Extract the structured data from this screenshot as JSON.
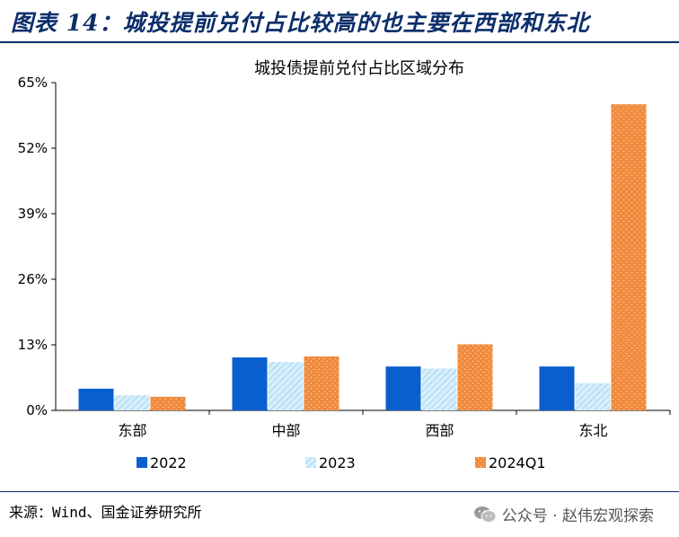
{
  "figure_title": "图表 14：城投提前兑付占比较高的也主要在西部和东北",
  "source": "来源：Wind、国金证券研究所",
  "watermark": {
    "icon": "wechat-icon",
    "text": "公众号 · 赵伟宏观探索"
  },
  "chart_data": {
    "type": "bar",
    "title": "城投债提前兑付占比区域分布",
    "categories": [
      "东部",
      "中部",
      "西部",
      "东北"
    ],
    "series": [
      {
        "name": "2022",
        "values": [
          4.3,
          10.5,
          8.7,
          8.7
        ],
        "color": "#0a5fcf",
        "pattern": "solid"
      },
      {
        "name": "2023",
        "values": [
          3.0,
          9.6,
          8.3,
          5.4
        ],
        "color": "#bfe3f7",
        "pattern": "hatch"
      },
      {
        "name": "2024Q1",
        "values": [
          2.7,
          10.7,
          13.1,
          60.7
        ],
        "color": "#f08a3c",
        "pattern": "dots"
      }
    ],
    "yticks": [
      "0%",
      "13%",
      "26%",
      "39%",
      "52%",
      "65%"
    ],
    "ylim": [
      0,
      65
    ],
    "legend_position": "bottom",
    "grid": false
  }
}
